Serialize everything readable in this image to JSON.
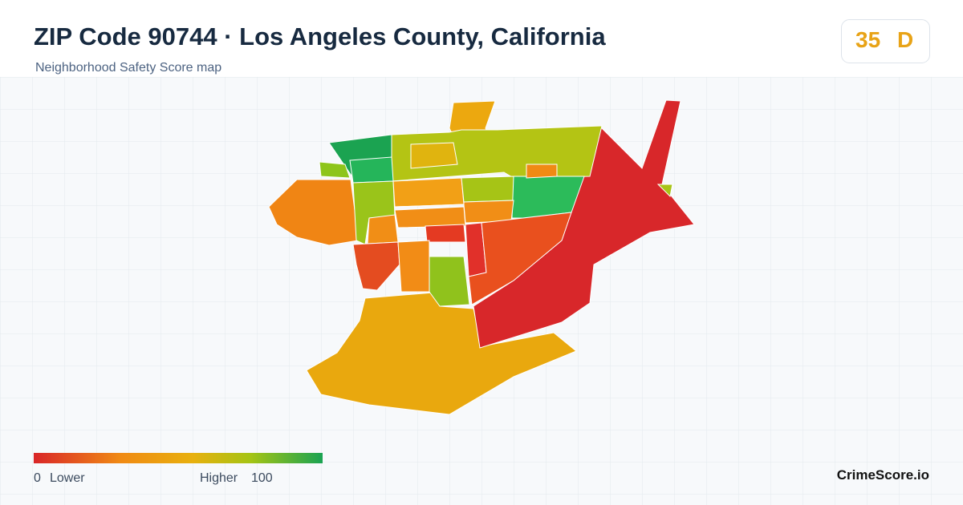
{
  "header": {
    "title": "ZIP Code 90744 · Los Angeles County, California",
    "subtitle": "Neighborhood Safety Score map"
  },
  "badge": {
    "score": "35",
    "grade": "D"
  },
  "legend": {
    "min": "0",
    "min_label": "Lower",
    "max_label": "Higher",
    "max": "100"
  },
  "brand": "CrimeScore.io"
}
